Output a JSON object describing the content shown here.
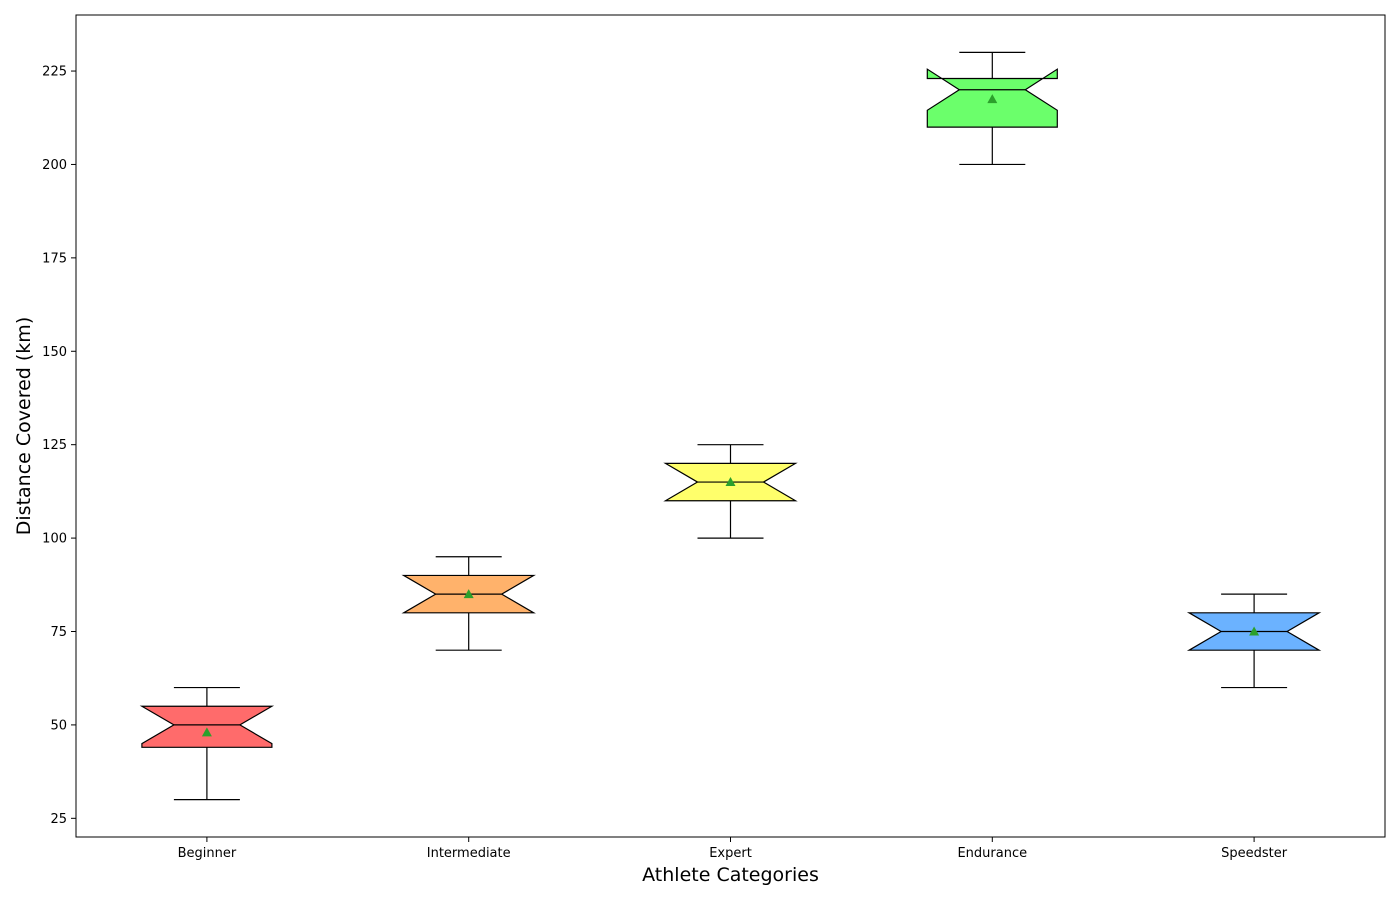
{
  "chart_data": {
    "type": "boxplot",
    "notched": true,
    "show_means": true,
    "xlabel": "Athlete Categories",
    "ylabel": "Distance Covered (km)",
    "ylim": [
      20,
      240
    ],
    "yticks": [
      25,
      50,
      75,
      100,
      125,
      150,
      175,
      200,
      225
    ],
    "grid": false,
    "categories": [
      "Beginner",
      "Intermediate",
      "Expert",
      "Endurance",
      "Speedster"
    ],
    "boxes": [
      {
        "category": "Beginner",
        "whisker_low": 30,
        "q1": 44,
        "median": 50,
        "q3": 55,
        "whisker_high": 60,
        "notch_low": 45,
        "notch_high": 55,
        "mean": 48,
        "color": "#ff6b6b"
      },
      {
        "category": "Intermediate",
        "whisker_low": 70,
        "q1": 80,
        "median": 85,
        "q3": 90,
        "whisker_high": 95,
        "notch_low": 80,
        "notch_high": 90,
        "mean": 85,
        "color": "#ffb26b"
      },
      {
        "category": "Expert",
        "whisker_low": 100,
        "q1": 110,
        "median": 115,
        "q3": 120,
        "whisker_high": 125,
        "notch_low": 110,
        "notch_high": 120,
        "mean": 115,
        "color": "#ffff6b"
      },
      {
        "category": "Endurance",
        "whisker_low": 200,
        "q1": 210,
        "median": 220,
        "q3": 223,
        "whisker_high": 230,
        "notch_low": 214.5,
        "notch_high": 225.5,
        "mean": 217.5,
        "color": "#6bff6b"
      },
      {
        "category": "Speedster",
        "whisker_low": 60,
        "q1": 70,
        "median": 75,
        "q3": 80,
        "whisker_high": 85,
        "notch_low": 70,
        "notch_high": 80,
        "mean": 75,
        "color": "#6bb2ff"
      }
    ],
    "mean_marker_color": "#2ca02c"
  }
}
